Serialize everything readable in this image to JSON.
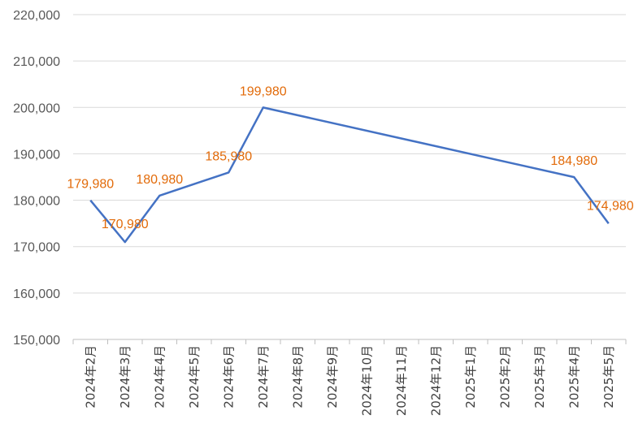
{
  "chart_data": {
    "type": "line",
    "categories": [
      "2024年2月",
      "2024年3月",
      "2024年4月",
      "2024年5月",
      "2024年6月",
      "2024年7月",
      "2024年8月",
      "2024年9月",
      "2024年10月",
      "2024年11月",
      "2024年12月",
      "2025年1月",
      "2025年2月",
      "2025年3月",
      "2025年4月",
      "2025年5月"
    ],
    "series": [
      {
        "values": [
          179980,
          170980,
          180980,
          null,
          185980,
          199980,
          null,
          null,
          null,
          null,
          null,
          null,
          null,
          null,
          184980,
          174980
        ],
        "data_labels": [
          "179,980",
          "170,980",
          "180,980",
          "",
          "185,980",
          "199,980",
          "",
          "",
          "",
          "",
          "",
          "",
          "",
          "",
          "184,980",
          "174,980"
        ],
        "color": "#4472c4",
        "label_color": "#e26b0a"
      }
    ],
    "ylim": [
      150000,
      220000
    ],
    "y_ticks": [
      150000,
      160000,
      170000,
      180000,
      190000,
      200000,
      210000,
      220000
    ],
    "y_tick_labels": [
      "150,000",
      "160,000",
      "170,000",
      "180,000",
      "190,000",
      "200,000",
      "210,000",
      "220,000"
    ],
    "grid": true,
    "gaps": "connect"
  }
}
